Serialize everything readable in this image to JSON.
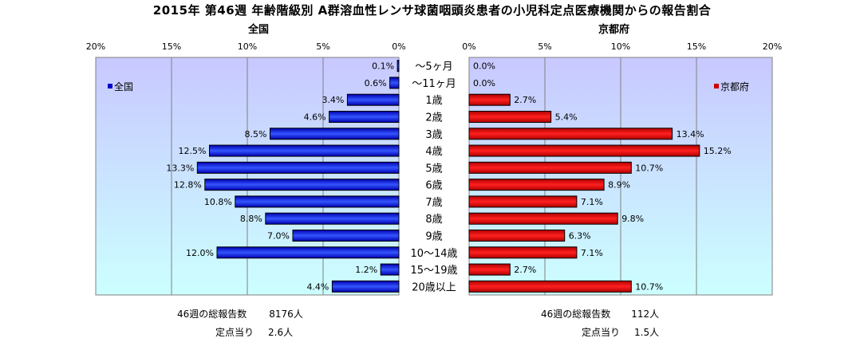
{
  "title": "2015年 第46週 年齢階級別 A群溶血性レンサ球菌咽頭炎患者の小児科定点医療機関からの報告割合",
  "chart_data": {
    "type": "bar",
    "orientation": "horizontal",
    "layout": "population-pyramid",
    "categories": [
      "～5ヶ月",
      "～11ヶ月",
      "1歳",
      "2歳",
      "3歳",
      "4歳",
      "5歳",
      "6歳",
      "7歳",
      "8歳",
      "9歳",
      "10～14歳",
      "15～19歳",
      "20歳以上"
    ],
    "panels": [
      {
        "key": "national",
        "title": "全国",
        "legend": "全国",
        "legend_position": "left",
        "direction": "left",
        "color": "#0000cc",
        "xlim": [
          0,
          20
        ],
        "ticks": [
          20,
          15,
          10,
          5,
          0
        ],
        "tick_suffix": "%",
        "values": [
          0.1,
          0.6,
          3.4,
          4.6,
          8.5,
          12.5,
          13.3,
          12.8,
          10.8,
          8.8,
          7.0,
          12.0,
          1.2,
          4.4
        ],
        "labels": [
          "0.1%",
          "0.6%",
          "3.4%",
          "4.6%",
          "8.5%",
          "12.5%",
          "13.3%",
          "12.8%",
          "10.8%",
          "8.8%",
          "7.0%",
          "12.0%",
          "1.2%",
          "4.4%"
        ]
      },
      {
        "key": "kyoto",
        "title": "京都府",
        "legend": "京都府",
        "legend_position": "right",
        "direction": "right",
        "color": "#cc0000",
        "xlim": [
          0,
          20
        ],
        "ticks": [
          0,
          5,
          10,
          15,
          20
        ],
        "tick_suffix": "%",
        "values": [
          0.0,
          0.0,
          2.7,
          5.4,
          13.4,
          15.2,
          10.7,
          8.9,
          7.1,
          9.8,
          6.3,
          7.1,
          2.7,
          10.7
        ],
        "labels": [
          "0.0%",
          "0.0%",
          "2.7%",
          "5.4%",
          "13.4%",
          "15.2%",
          "10.7%",
          "8.9%",
          "7.1%",
          "9.8%",
          "6.3%",
          "7.1%",
          "2.7%",
          "10.7%"
        ]
      }
    ],
    "grid": true
  },
  "footer": {
    "national": {
      "total_label": "46週の総報告数",
      "total_value": "8176人",
      "per_label": "定点当り",
      "per_value": "2.6人"
    },
    "kyoto": {
      "total_label": "46週の総報告数",
      "total_value": "112人",
      "per_label": "定点当り",
      "per_value": "1.5人"
    }
  }
}
